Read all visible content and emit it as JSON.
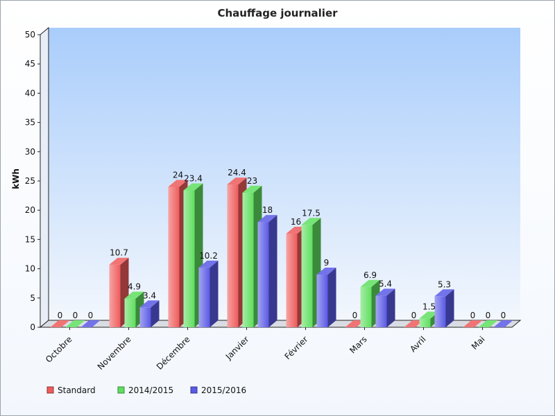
{
  "chart_data": {
    "type": "bar",
    "title": "Chauffage journalier",
    "xlabel": "",
    "ylabel": "kWh",
    "ylim": [
      0,
      50
    ],
    "yticks": [
      0,
      5,
      10,
      15,
      20,
      25,
      30,
      35,
      40,
      45,
      50
    ],
    "categories": [
      "Octobre",
      "Novembre",
      "Décembre",
      "Janvier",
      "Février",
      "Mars",
      "Avril",
      "Mai"
    ],
    "series": [
      {
        "name": "Standard",
        "color": "#ef5b5b",
        "values": [
          0,
          10.7,
          24,
          24.4,
          16,
          0,
          0,
          0
        ]
      },
      {
        "name": "2014/2015",
        "color": "#5fdf5f",
        "values": [
          0,
          4.9,
          23.4,
          23,
          17.5,
          6.9,
          1.5,
          0
        ]
      },
      {
        "name": "2015/2016",
        "color": "#5a5ae6",
        "values": [
          0,
          3.4,
          10.2,
          18,
          9,
          5.4,
          5.3,
          0
        ]
      }
    ],
    "grid": false,
    "legend": "bottom-left",
    "background": "#a9cdfb",
    "style": "3d"
  }
}
